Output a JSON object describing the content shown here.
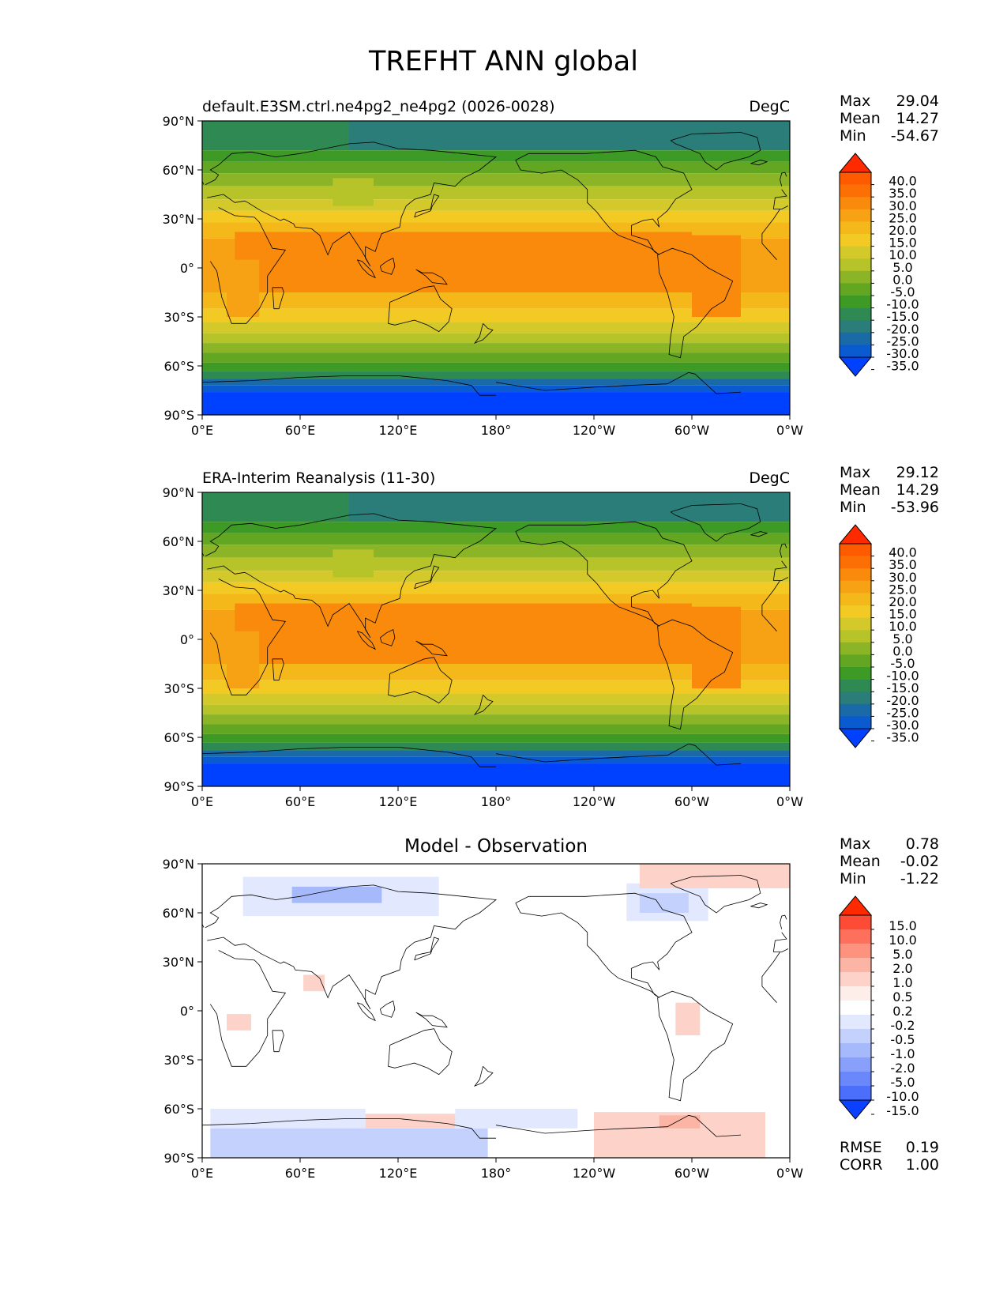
{
  "title": "TREFHT ANN global",
  "lon_ticks": [
    "0°E",
    "60°E",
    "120°E",
    "180°",
    "120°W",
    "60°W",
    "0°W"
  ],
  "lat_ticks": [
    "90°N",
    "60°N",
    "30°N",
    "0°",
    "30°S",
    "60°S",
    "90°S"
  ],
  "panels": [
    {
      "title": "default.E3SM.ctrl.ne4pg2_ne4pg2 (0026-0028)",
      "units": "DegC",
      "stats": [
        {
          "label": "Max",
          "value": "29.04"
        },
        {
          "label": "Mean",
          "value": "14.27"
        },
        {
          "label": "Min",
          "value": "-54.67"
        }
      ],
      "colorbar": {
        "labels": [
          "40.0",
          "35.0",
          "30.0",
          "25.0",
          "20.0",
          "15.0",
          "10.0",
          "5.0",
          "0.0",
          "-5.0",
          "-10.0",
          "-15.0",
          "-20.0",
          "-25.0",
          "-30.0",
          "-35.0"
        ],
        "colors": [
          "#ff2a00",
          "#fe5a00",
          "#fb6f04",
          "#f98a0c",
          "#f6a214",
          "#f5b81b",
          "#f3ca23",
          "#d3c92a",
          "#b6c42a",
          "#8bb526",
          "#62a622",
          "#3c9a25",
          "#2e8a52",
          "#2a7d78",
          "#1a6aa8",
          "#0a5ad0",
          "#0040ff"
        ]
      },
      "regions": [
        {
          "lat": [
            72,
            90
          ],
          "lon": [
            0,
            90
          ],
          "color": "#2e8a52"
        },
        {
          "lat": [
            72,
            90
          ],
          "lon": [
            90,
            360
          ],
          "color": "#2a7d78"
        },
        {
          "lat": [
            65,
            72
          ],
          "lon": [
            0,
            360
          ],
          "color": "#3c9a25"
        },
        {
          "lat": [
            58,
            65
          ],
          "lon": [
            0,
            360
          ],
          "color": "#62a622"
        },
        {
          "lat": [
            50,
            58
          ],
          "lon": [
            0,
            360
          ],
          "color": "#8bb526"
        },
        {
          "lat": [
            42,
            50
          ],
          "lon": [
            0,
            360
          ],
          "color": "#b6c42a"
        },
        {
          "lat": [
            35,
            42
          ],
          "lon": [
            0,
            360
          ],
          "color": "#d3c92a"
        },
        {
          "lat": [
            28,
            35
          ],
          "lon": [
            0,
            360
          ],
          "color": "#f3ca23"
        },
        {
          "lat": [
            18,
            28
          ],
          "lon": [
            0,
            360
          ],
          "color": "#f5b81b"
        },
        {
          "lat": [
            -15,
            18
          ],
          "lon": [
            0,
            360
          ],
          "color": "#f6a214"
        },
        {
          "lat": [
            -15,
            22
          ],
          "lon": [
            20,
            300
          ],
          "color": "#f98a0c"
        },
        {
          "lat": [
            -25,
            -15
          ],
          "lon": [
            0,
            360
          ],
          "color": "#f5b81b"
        },
        {
          "lat": [
            -33,
            -25
          ],
          "lon": [
            0,
            360
          ],
          "color": "#f3ca23"
        },
        {
          "lat": [
            -40,
            -33
          ],
          "lon": [
            0,
            360
          ],
          "color": "#d3c92a"
        },
        {
          "lat": [
            -46,
            -40
          ],
          "lon": [
            0,
            360
          ],
          "color": "#b6c42a"
        },
        {
          "lat": [
            -52,
            -46
          ],
          "lon": [
            0,
            360
          ],
          "color": "#8bb526"
        },
        {
          "lat": [
            -58,
            -52
          ],
          "lon": [
            0,
            360
          ],
          "color": "#62a622"
        },
        {
          "lat": [
            -63,
            -58
          ],
          "lon": [
            0,
            360
          ],
          "color": "#3c9a25"
        },
        {
          "lat": [
            -68,
            -63
          ],
          "lon": [
            0,
            360
          ],
          "color": "#2e8a52"
        },
        {
          "lat": [
            -72,
            -68
          ],
          "lon": [
            0,
            360
          ],
          "color": "#1a6aa8"
        },
        {
          "lat": [
            -76,
            -72
          ],
          "lon": [
            0,
            360
          ],
          "color": "#0a5ad0"
        },
        {
          "lat": [
            -90,
            -76
          ],
          "lon": [
            0,
            360
          ],
          "color": "#0040ff"
        },
        {
          "lat": [
            38,
            55
          ],
          "lon": [
            80,
            105
          ],
          "color": "#b6c42a"
        },
        {
          "lat": [
            -30,
            5
          ],
          "lon": [
            15,
            35
          ],
          "color": "#f6a214"
        },
        {
          "lat": [
            -30,
            20
          ],
          "lon": [
            300,
            330
          ],
          "color": "#f98a0c"
        }
      ]
    },
    {
      "title": "ERA-Interim Reanalysis (11-30)",
      "units": "DegC",
      "stats": [
        {
          "label": "Max",
          "value": "29.12"
        },
        {
          "label": "Mean",
          "value": "14.29"
        },
        {
          "label": "Min",
          "value": "-53.96"
        }
      ],
      "colorbar": {
        "labels": [
          "40.0",
          "35.0",
          "30.0",
          "25.0",
          "20.0",
          "15.0",
          "10.0",
          "5.0",
          "0.0",
          "-5.0",
          "-10.0",
          "-15.0",
          "-20.0",
          "-25.0",
          "-30.0",
          "-35.0"
        ],
        "colors": [
          "#ff2a00",
          "#fe5a00",
          "#fb6f04",
          "#f98a0c",
          "#f6a214",
          "#f5b81b",
          "#f3ca23",
          "#d3c92a",
          "#b6c42a",
          "#8bb526",
          "#62a622",
          "#3c9a25",
          "#2e8a52",
          "#2a7d78",
          "#1a6aa8",
          "#0a5ad0",
          "#0040ff"
        ]
      },
      "regions": [
        {
          "lat": [
            72,
            90
          ],
          "lon": [
            0,
            90
          ],
          "color": "#2e8a52"
        },
        {
          "lat": [
            72,
            90
          ],
          "lon": [
            90,
            360
          ],
          "color": "#2a7d78"
        },
        {
          "lat": [
            65,
            72
          ],
          "lon": [
            0,
            360
          ],
          "color": "#3c9a25"
        },
        {
          "lat": [
            58,
            65
          ],
          "lon": [
            0,
            360
          ],
          "color": "#62a622"
        },
        {
          "lat": [
            50,
            58
          ],
          "lon": [
            0,
            360
          ],
          "color": "#8bb526"
        },
        {
          "lat": [
            42,
            50
          ],
          "lon": [
            0,
            360
          ],
          "color": "#b6c42a"
        },
        {
          "lat": [
            35,
            42
          ],
          "lon": [
            0,
            360
          ],
          "color": "#d3c92a"
        },
        {
          "lat": [
            28,
            35
          ],
          "lon": [
            0,
            360
          ],
          "color": "#f3ca23"
        },
        {
          "lat": [
            18,
            28
          ],
          "lon": [
            0,
            360
          ],
          "color": "#f5b81b"
        },
        {
          "lat": [
            -15,
            18
          ],
          "lon": [
            0,
            360
          ],
          "color": "#f6a214"
        },
        {
          "lat": [
            -15,
            22
          ],
          "lon": [
            20,
            300
          ],
          "color": "#f98a0c"
        },
        {
          "lat": [
            -25,
            -15
          ],
          "lon": [
            0,
            360
          ],
          "color": "#f5b81b"
        },
        {
          "lat": [
            -33,
            -25
          ],
          "lon": [
            0,
            360
          ],
          "color": "#f3ca23"
        },
        {
          "lat": [
            -40,
            -33
          ],
          "lon": [
            0,
            360
          ],
          "color": "#d3c92a"
        },
        {
          "lat": [
            -46,
            -40
          ],
          "lon": [
            0,
            360
          ],
          "color": "#b6c42a"
        },
        {
          "lat": [
            -52,
            -46
          ],
          "lon": [
            0,
            360
          ],
          "color": "#8bb526"
        },
        {
          "lat": [
            -58,
            -52
          ],
          "lon": [
            0,
            360
          ],
          "color": "#62a622"
        },
        {
          "lat": [
            -63,
            -58
          ],
          "lon": [
            0,
            360
          ],
          "color": "#3c9a25"
        },
        {
          "lat": [
            -68,
            -63
          ],
          "lon": [
            0,
            360
          ],
          "color": "#2e8a52"
        },
        {
          "lat": [
            -72,
            -68
          ],
          "lon": [
            0,
            360
          ],
          "color": "#1a6aa8"
        },
        {
          "lat": [
            -76,
            -72
          ],
          "lon": [
            0,
            360
          ],
          "color": "#0a5ad0"
        },
        {
          "lat": [
            -90,
            -76
          ],
          "lon": [
            0,
            360
          ],
          "color": "#0040ff"
        },
        {
          "lat": [
            38,
            55
          ],
          "lon": [
            80,
            105
          ],
          "color": "#b6c42a"
        },
        {
          "lat": [
            -30,
            5
          ],
          "lon": [
            15,
            35
          ],
          "color": "#f6a214"
        },
        {
          "lat": [
            -30,
            20
          ],
          "lon": [
            300,
            330
          ],
          "color": "#f98a0c"
        }
      ]
    },
    {
      "title": "Model - Observation",
      "units": "",
      "stats": [
        {
          "label": "Max",
          "value": "0.78"
        },
        {
          "label": "Mean",
          "value": "-0.02"
        },
        {
          "label": "Min",
          "value": "-1.22"
        }
      ],
      "extra_stats": [
        {
          "label": "RMSE",
          "value": "0.19"
        },
        {
          "label": "CORR",
          "value": "1.00"
        }
      ],
      "colorbar": {
        "labels": [
          "15.0",
          "10.0",
          "5.0",
          "2.0",
          "1.0",
          "0.5",
          "0.2",
          "-0.2",
          "-0.5",
          "-1.0",
          "-2.0",
          "-5.0",
          "-10.0",
          "-15.0"
        ],
        "colors": [
          "#ff2a00",
          "#fe4b36",
          "#fe6f5c",
          "#fd937f",
          "#fcb4a4",
          "#fdd2c8",
          "#feeeea",
          "#ffffff",
          "#e2e8fd",
          "#c4d1fc",
          "#a6b9fb",
          "#88a0fa",
          "#6a88f9",
          "#4b6ffa",
          "#0a40ff"
        ]
      },
      "regions": [
        {
          "lat": [
            58,
            82
          ],
          "lon": [
            25,
            145
          ],
          "color": "#e2e8fd"
        },
        {
          "lat": [
            66,
            76
          ],
          "lon": [
            55,
            110
          ],
          "color": "#a6b9fb"
        },
        {
          "lat": [
            55,
            78
          ],
          "lon": [
            260,
            310
          ],
          "color": "#e2e8fd"
        },
        {
          "lat": [
            60,
            72
          ],
          "lon": [
            268,
            298
          ],
          "color": "#c4d1fc"
        },
        {
          "lat": [
            75,
            90
          ],
          "lon": [
            268,
            360
          ],
          "color": "#fdd2c8"
        },
        {
          "lat": [
            12,
            22
          ],
          "lon": [
            62,
            75
          ],
          "color": "#fdd2c8"
        },
        {
          "lat": [
            -12,
            -2
          ],
          "lon": [
            15,
            30
          ],
          "color": "#fdd2c8"
        },
        {
          "lat": [
            -15,
            5
          ],
          "lon": [
            290,
            305
          ],
          "color": "#fdd2c8"
        },
        {
          "lat": [
            -72,
            -60
          ],
          "lon": [
            5,
            100
          ],
          "color": "#e2e8fd"
        },
        {
          "lat": [
            -90,
            -72
          ],
          "lon": [
            5,
            175
          ],
          "color": "#c4d1fc"
        },
        {
          "lat": [
            -72,
            -63
          ],
          "lon": [
            100,
            155
          ],
          "color": "#fdd2c8"
        },
        {
          "lat": [
            -72,
            -60
          ],
          "lon": [
            155,
            230
          ],
          "color": "#e2e8fd"
        },
        {
          "lat": [
            -90,
            -62
          ],
          "lon": [
            240,
            345
          ],
          "color": "#fdd2c8"
        },
        {
          "lat": [
            -72,
            -64
          ],
          "lon": [
            280,
            305
          ],
          "color": "#fcb4a4"
        }
      ]
    }
  ]
}
